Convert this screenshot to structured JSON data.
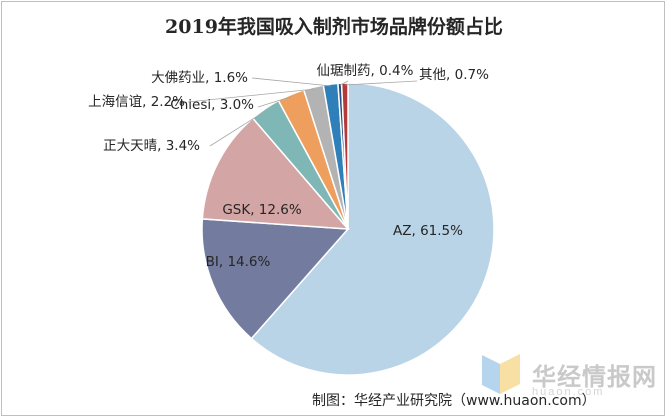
{
  "chart_data": {
    "type": "pie",
    "title": "2019年我国吸入制剂市场品牌份额占比",
    "slices": [
      {
        "name": "AZ",
        "value": 61.5,
        "color": "#b9d4e6",
        "label": "AZ, 61.5%"
      },
      {
        "name": "BI",
        "value": 14.6,
        "color": "#737c9f",
        "label": "BI, 14.6%"
      },
      {
        "name": "GSK",
        "value": 12.6,
        "color": "#d4a5a5",
        "label": "GSK, 12.6%"
      },
      {
        "name": "正大天晴",
        "value": 3.4,
        "color": "#7fb7b6",
        "label": "正大天晴, 3.4%"
      },
      {
        "name": "Chiesi",
        "value": 3.0,
        "color": "#ef9f5d",
        "label": "Chiesi, 3.0%"
      },
      {
        "name": "上海信谊",
        "value": 2.2,
        "color": "#b3b3b3",
        "label": "上海信谊, 2.2%"
      },
      {
        "name": "大佛药业",
        "value": 1.6,
        "color": "#2f7fb8",
        "label": "大佛药业, 1.6%"
      },
      {
        "name": "仙琚制药",
        "value": 0.4,
        "color": "#2e4d7f",
        "label": "仙琚制药, 0.4%"
      },
      {
        "name": "其他",
        "value": 0.7,
        "color": "#b43a3a",
        "label": "其他, 0.7%"
      }
    ]
  },
  "watermark": {
    "brand": "华经情报网",
    "url": "huaon.com",
    "accent_colors": [
      "#f2c24a",
      "#5aa0d8"
    ]
  },
  "footer": "制图：华经产业研究院（www.huaon.com）"
}
